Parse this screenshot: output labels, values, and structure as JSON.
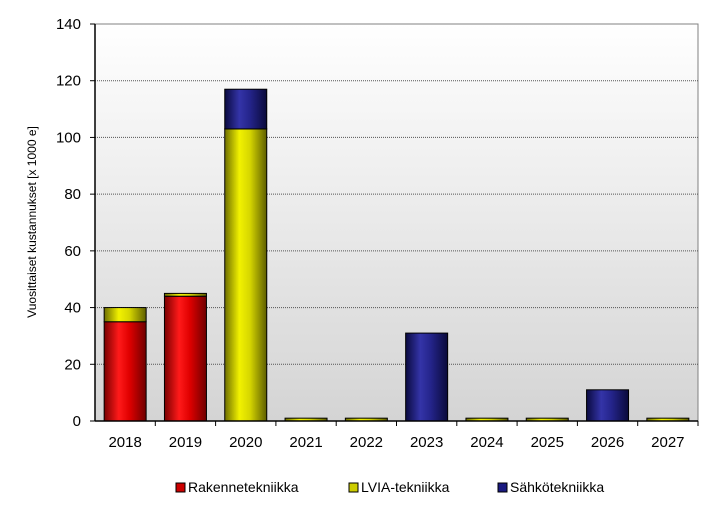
{
  "chart_data": {
    "type": "bar",
    "stacked": true,
    "categories": [
      "2018",
      "2019",
      "2020",
      "2021",
      "2022",
      "2023",
      "2024",
      "2025",
      "2026",
      "2027"
    ],
    "series": [
      {
        "name": "Rakennetekniikka",
        "color": "#cc0000",
        "values": [
          35,
          44,
          0,
          0,
          0,
          0,
          0,
          0,
          0,
          0
        ]
      },
      {
        "name": "LVIA-tekniikka",
        "color": "#cccc00",
        "values": [
          5,
          1,
          103,
          1,
          1,
          0,
          1,
          1,
          0,
          1
        ]
      },
      {
        "name": "Sähkötekniikka",
        "color": "#1a1a80",
        "values": [
          0,
          0,
          14,
          0,
          0,
          31,
          0,
          0,
          11,
          0
        ]
      }
    ],
    "ylabel": "Vuosittaiset kustannukset [x 1000 e]",
    "xlabel": "",
    "ylim": [
      0,
      140
    ],
    "yticks": [
      0,
      20,
      40,
      60,
      80,
      100,
      120,
      140
    ],
    "grid": true,
    "legend": "bottom"
  }
}
